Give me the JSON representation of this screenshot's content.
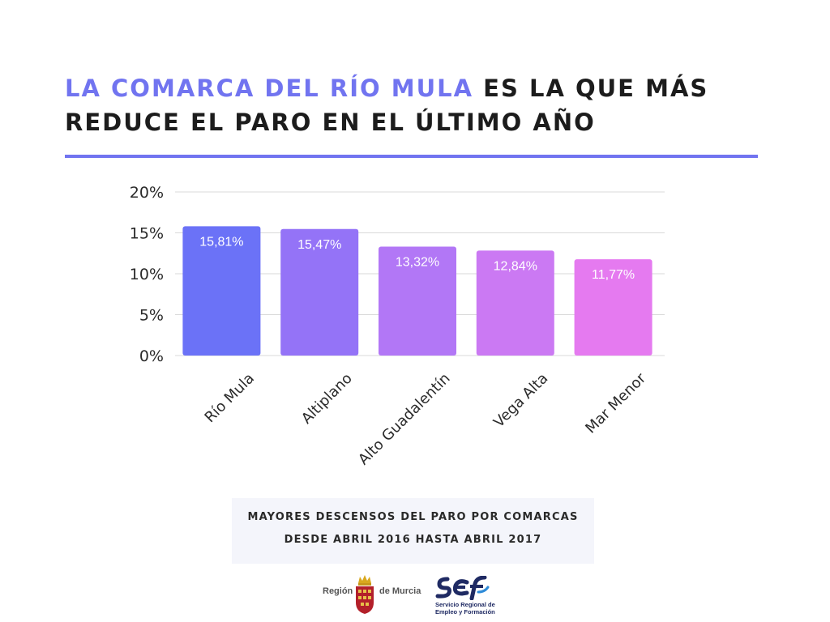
{
  "header": {
    "title_highlight": "LA COMARCA DEL RÍO MULA",
    "title_rest": " ES LA QUE MÁS REDUCE EL PARO EN EL ÚLTIMO AÑO"
  },
  "chart_data": {
    "type": "bar",
    "categories": [
      "Río Mula",
      "Altiplano",
      "Alto Guadalentín",
      "Vega Alta",
      "Mar Menor"
    ],
    "values": [
      15.81,
      15.47,
      13.32,
      12.84,
      11.77
    ],
    "data_labels": [
      "15,81%",
      "15,47%",
      "13,32%",
      "12,84%",
      "11,77%"
    ],
    "bar_colors": [
      "#6b72f7",
      "#9473f7",
      "#b277f6",
      "#cb79f3",
      "#e57af0"
    ],
    "ylim": [
      0,
      20
    ],
    "y_ticks": [
      0,
      5,
      10,
      15,
      20
    ],
    "y_tick_labels": [
      "0%",
      "5%",
      "10%",
      "15%",
      "20%"
    ],
    "grid": true,
    "title": "",
    "xlabel": "",
    "ylabel": ""
  },
  "caption": {
    "line1": "MAYORES DESCENSOS DEL PARO POR COMARCAS",
    "line2": "DESDE ABRIL 2016 HASTA ABRIL 2017"
  },
  "footer": {
    "region_left": "Región",
    "region_right": "de Murcia",
    "sef_lines": [
      "Servicio Regional de",
      "Empleo y Formación"
    ]
  },
  "colors": {
    "accent": "#7174f0",
    "caption_bg": "#f4f5fb"
  },
  "icons": [
    "murcia-crest-icon",
    "sef-logo-icon"
  ]
}
